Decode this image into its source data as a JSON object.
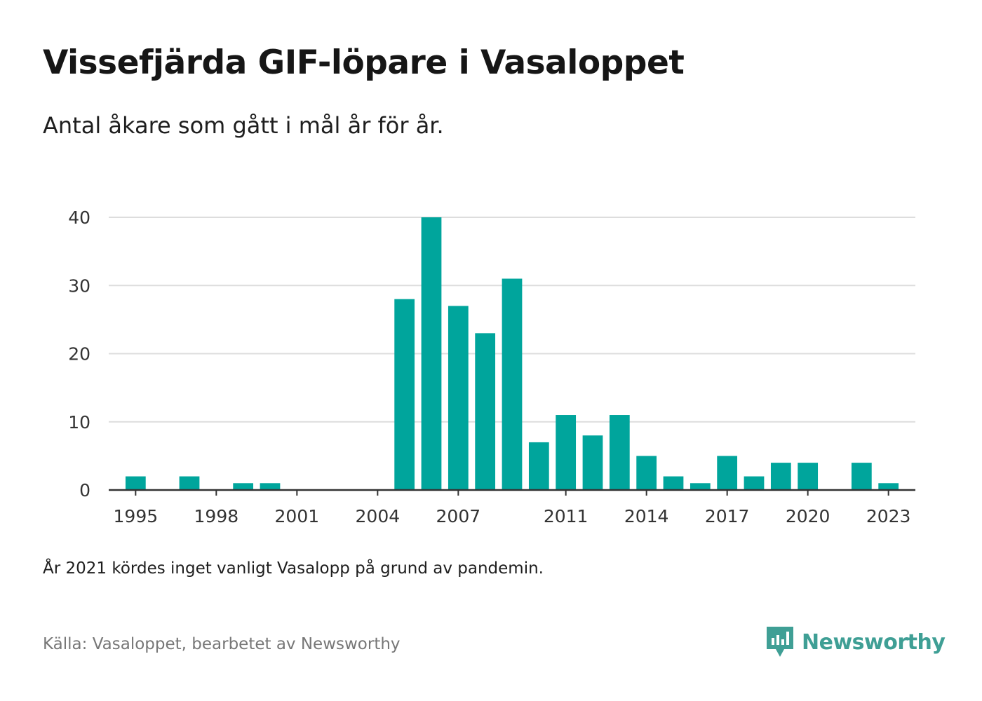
{
  "title": "Vissefjärda GIF-löpare i Vasaloppet",
  "subtitle": "Antal åkare som gått i mål år för år.",
  "note": "År 2021 kördes inget vanligt Vasalopp på grund av pandemin.",
  "source": "Källa: Vasaloppet, bearbetet av Newsworthy",
  "brand": {
    "name": "Newsworthy",
    "icon": "newsworthy-logo-icon",
    "color": "#3f9f95"
  },
  "chart_data": {
    "type": "bar",
    "bar_color": "#00a59c",
    "grid": true,
    "x_domain": [
      1994,
      2024
    ],
    "categories": [
      1995,
      1996,
      1997,
      1998,
      1999,
      2000,
      2001,
      2002,
      2003,
      2004,
      2005,
      2006,
      2007,
      2008,
      2009,
      2010,
      2011,
      2012,
      2013,
      2014,
      2015,
      2016,
      2017,
      2018,
      2019,
      2020,
      2021,
      2022,
      2023
    ],
    "values": [
      2,
      0,
      2,
      0,
      1,
      1,
      0,
      0,
      0,
      0,
      28,
      40,
      27,
      23,
      31,
      7,
      11,
      8,
      11,
      5,
      2,
      1,
      5,
      2,
      4,
      4,
      0,
      4,
      1
    ],
    "x_tick_labels": [
      "1995",
      "1998",
      "2001",
      "2004",
      "2007",
      "2011",
      "2014",
      "2017",
      "2020",
      "2023"
    ],
    "y_ticks": [
      0,
      10,
      20,
      30,
      40
    ],
    "ylim": [
      0,
      40
    ],
    "xlabel": "",
    "ylabel": ""
  }
}
